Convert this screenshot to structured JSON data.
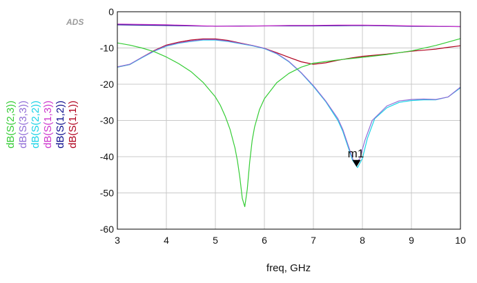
{
  "chart_data": {
    "type": "line",
    "logo": "ADS",
    "xlabel": "freq, GHz",
    "ylabel": "",
    "xlim": [
      3,
      10
    ],
    "ylim": [
      -60,
      0
    ],
    "x_ticks": [
      "3",
      "4",
      "5",
      "6",
      "7",
      "8",
      "9",
      "10"
    ],
    "y_ticks": [
      "0",
      "-10",
      "-20",
      "-30",
      "-40",
      "-50",
      "-60"
    ],
    "grid": true,
    "marker": {
      "label": "m1",
      "x": 7.88,
      "y": -43
    },
    "series": [
      {
        "name": "dB(S(1,1))",
        "color": "#b0001e",
        "x": [
          3,
          3.25,
          3.5,
          3.75,
          4,
          4.25,
          4.5,
          4.75,
          5,
          5.25,
          5.5,
          5.75,
          6,
          6.25,
          6.5,
          6.75,
          7,
          7.25,
          7.5,
          7.75,
          8,
          8.25,
          8.5,
          8.75,
          9,
          9.25,
          9.5,
          9.75,
          10
        ],
        "values": [
          -15.3,
          -14.6,
          -12.6,
          -10.7,
          -9.2,
          -8.4,
          -7.8,
          -7.5,
          -7.5,
          -7.9,
          -8.6,
          -9.3,
          -10.1,
          -11.3,
          -12.6,
          -13.8,
          -14.5,
          -14.1,
          -13.4,
          -12.8,
          -12.3,
          -12.0,
          -11.7,
          -11.3,
          -10.9,
          -10.6,
          -10.3,
          -9.8,
          -9.4
        ]
      },
      {
        "name": "dB(S(1,2))",
        "color": "#0a0a8c",
        "x": [
          3,
          4,
          5,
          6,
          7,
          8,
          9,
          10
        ],
        "values": [
          -3.6,
          -3.8,
          -4.0,
          -3.9,
          -3.9,
          -3.8,
          -4.0,
          -4.1
        ]
      },
      {
        "name": "dB(S(1,3))",
        "color": "#cc33cc",
        "x": [
          3,
          3.5,
          4,
          4.5,
          5,
          5.5,
          6,
          6.5,
          7,
          7.5,
          8,
          8.5,
          9,
          9.5,
          10
        ],
        "values": [
          -3.4,
          -3.5,
          -3.6,
          -3.8,
          -4.0,
          -4.0,
          -3.9,
          -3.8,
          -3.8,
          -3.7,
          -3.7,
          -3.8,
          -3.9,
          -4.0,
          -4.1
        ]
      },
      {
        "name": "dB(S(2,2))",
        "color": "#19d2e6",
        "x": [
          3,
          3.25,
          3.5,
          3.75,
          4,
          4.25,
          4.5,
          4.75,
          5,
          5.25,
          5.5,
          5.75,
          6,
          6.25,
          6.5,
          6.75,
          7,
          7.25,
          7.5,
          7.6,
          7.7,
          7.8,
          7.9,
          8.0,
          8.1,
          8.25,
          8.5,
          8.75,
          9,
          9.25,
          9.5,
          9.75,
          10
        ],
        "values": [
          -15.3,
          -14.6,
          -12.7,
          -10.9,
          -9.5,
          -8.7,
          -8.2,
          -7.8,
          -7.8,
          -8.2,
          -8.8,
          -9.4,
          -10.2,
          -11.6,
          -13.8,
          -16.9,
          -20.6,
          -24.8,
          -30.0,
          -33.0,
          -37.0,
          -41.0,
          -43.0,
          -40.5,
          -35.0,
          -29.5,
          -26.5,
          -25.0,
          -24.5,
          -24.3,
          -24.3,
          -23.5,
          -21.0
        ]
      },
      {
        "name": "dB(S(3,3))",
        "color": "#8f6bd6",
        "x": [
          3,
          3.25,
          3.5,
          3.75,
          4,
          4.25,
          4.5,
          4.75,
          5,
          5.25,
          5.5,
          5.75,
          6,
          6.25,
          6.5,
          6.75,
          7,
          7.25,
          7.5,
          7.6,
          7.7,
          7.8,
          7.85,
          7.95,
          8.05,
          8.2,
          8.5,
          8.75,
          9,
          9.25,
          9.5,
          9.75,
          10
        ],
        "values": [
          -15.2,
          -14.5,
          -12.6,
          -10.8,
          -9.4,
          -8.6,
          -8.1,
          -7.7,
          -7.7,
          -8.1,
          -8.7,
          -9.3,
          -10.1,
          -11.5,
          -13.7,
          -16.8,
          -20.4,
          -24.6,
          -29.5,
          -32.5,
          -36.5,
          -40.5,
          -42.0,
          -40.5,
          -35.5,
          -30.0,
          -26.0,
          -24.6,
          -24.2,
          -24.1,
          -24.2,
          -23.5,
          -20.8
        ]
      },
      {
        "name": "dB(S(2,3))",
        "color": "#33cc33",
        "x": [
          3,
          3.25,
          3.5,
          3.75,
          4,
          4.25,
          4.5,
          4.75,
          5,
          5.1,
          5.2,
          5.3,
          5.4,
          5.45,
          5.5,
          5.55,
          5.6,
          5.65,
          5.7,
          5.75,
          5.8,
          5.9,
          6,
          6.25,
          6.5,
          6.75,
          7,
          7.5,
          8,
          8.5,
          9,
          9.5,
          10
        ],
        "values": [
          -8.6,
          -9.2,
          -10.0,
          -11.0,
          -12.5,
          -14.3,
          -16.5,
          -19.5,
          -23.5,
          -25.8,
          -28.8,
          -32.5,
          -37.6,
          -41.2,
          -45.8,
          -51.5,
          -53.8,
          -49.0,
          -41.5,
          -35.5,
          -31.8,
          -27.0,
          -24.0,
          -19.6,
          -17.0,
          -15.3,
          -14.2,
          -13.3,
          -12.6,
          -11.8,
          -10.8,
          -9.3,
          -7.4
        ]
      }
    ]
  }
}
